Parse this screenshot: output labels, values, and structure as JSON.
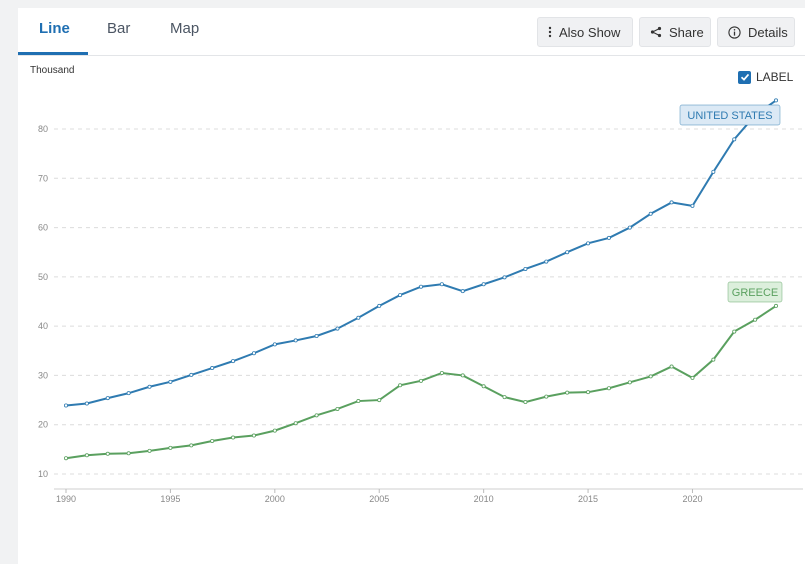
{
  "tabs": [
    {
      "label": "Line",
      "active": true
    },
    {
      "label": "Bar",
      "active": false
    },
    {
      "label": "Map",
      "active": false
    }
  ],
  "toolbar": {
    "also_show": "Also Show",
    "share": "Share",
    "details": "Details"
  },
  "label_toggle": {
    "label": "LABEL",
    "checked": true
  },
  "colors": {
    "accent": "#1f6fb2",
    "us": "#2f7bb1",
    "greece": "#5aa05f"
  },
  "chart_data": {
    "type": "line",
    "ylabel": "Thousand",
    "ylim": [
      10,
      86
    ],
    "yticks": [
      10,
      20,
      30,
      40,
      50,
      60,
      70,
      80
    ],
    "xlim": [
      1990,
      2024
    ],
    "xticks": [
      1990,
      1995,
      2000,
      2005,
      2010,
      2015,
      2020
    ],
    "grid": true,
    "x": [
      1990,
      1991,
      1992,
      1993,
      1994,
      1995,
      1996,
      1997,
      1998,
      1999,
      2000,
      2001,
      2002,
      2003,
      2004,
      2005,
      2006,
      2007,
      2008,
      2009,
      2010,
      2011,
      2012,
      2013,
      2014,
      2015,
      2016,
      2017,
      2018,
      2019,
      2020,
      2021,
      2022,
      2023,
      2024
    ],
    "series": [
      {
        "name": "UNITED STATES",
        "values": [
          23.9,
          24.3,
          25.4,
          26.4,
          27.7,
          28.7,
          30.1,
          31.5,
          32.9,
          34.5,
          36.3,
          37.1,
          38.0,
          39.5,
          41.7,
          44.1,
          46.3,
          48.0,
          48.5,
          47.1,
          48.5,
          49.9,
          51.6,
          53.1,
          55.0,
          56.8,
          57.9,
          60.0,
          62.8,
          65.1,
          64.4,
          71.3,
          77.9,
          82.8,
          85.8
        ]
      },
      {
        "name": "GREECE",
        "values": [
          13.2,
          13.8,
          14.1,
          14.2,
          14.7,
          15.3,
          15.8,
          16.7,
          17.4,
          17.8,
          18.8,
          20.3,
          21.9,
          23.2,
          24.8,
          25.0,
          28.0,
          28.9,
          30.5,
          30.0,
          27.8,
          25.6,
          24.6,
          25.7,
          26.5,
          26.6,
          27.4,
          28.6,
          29.8,
          31.8,
          29.5,
          33.2,
          38.9,
          41.3,
          44.1
        ]
      }
    ]
  }
}
